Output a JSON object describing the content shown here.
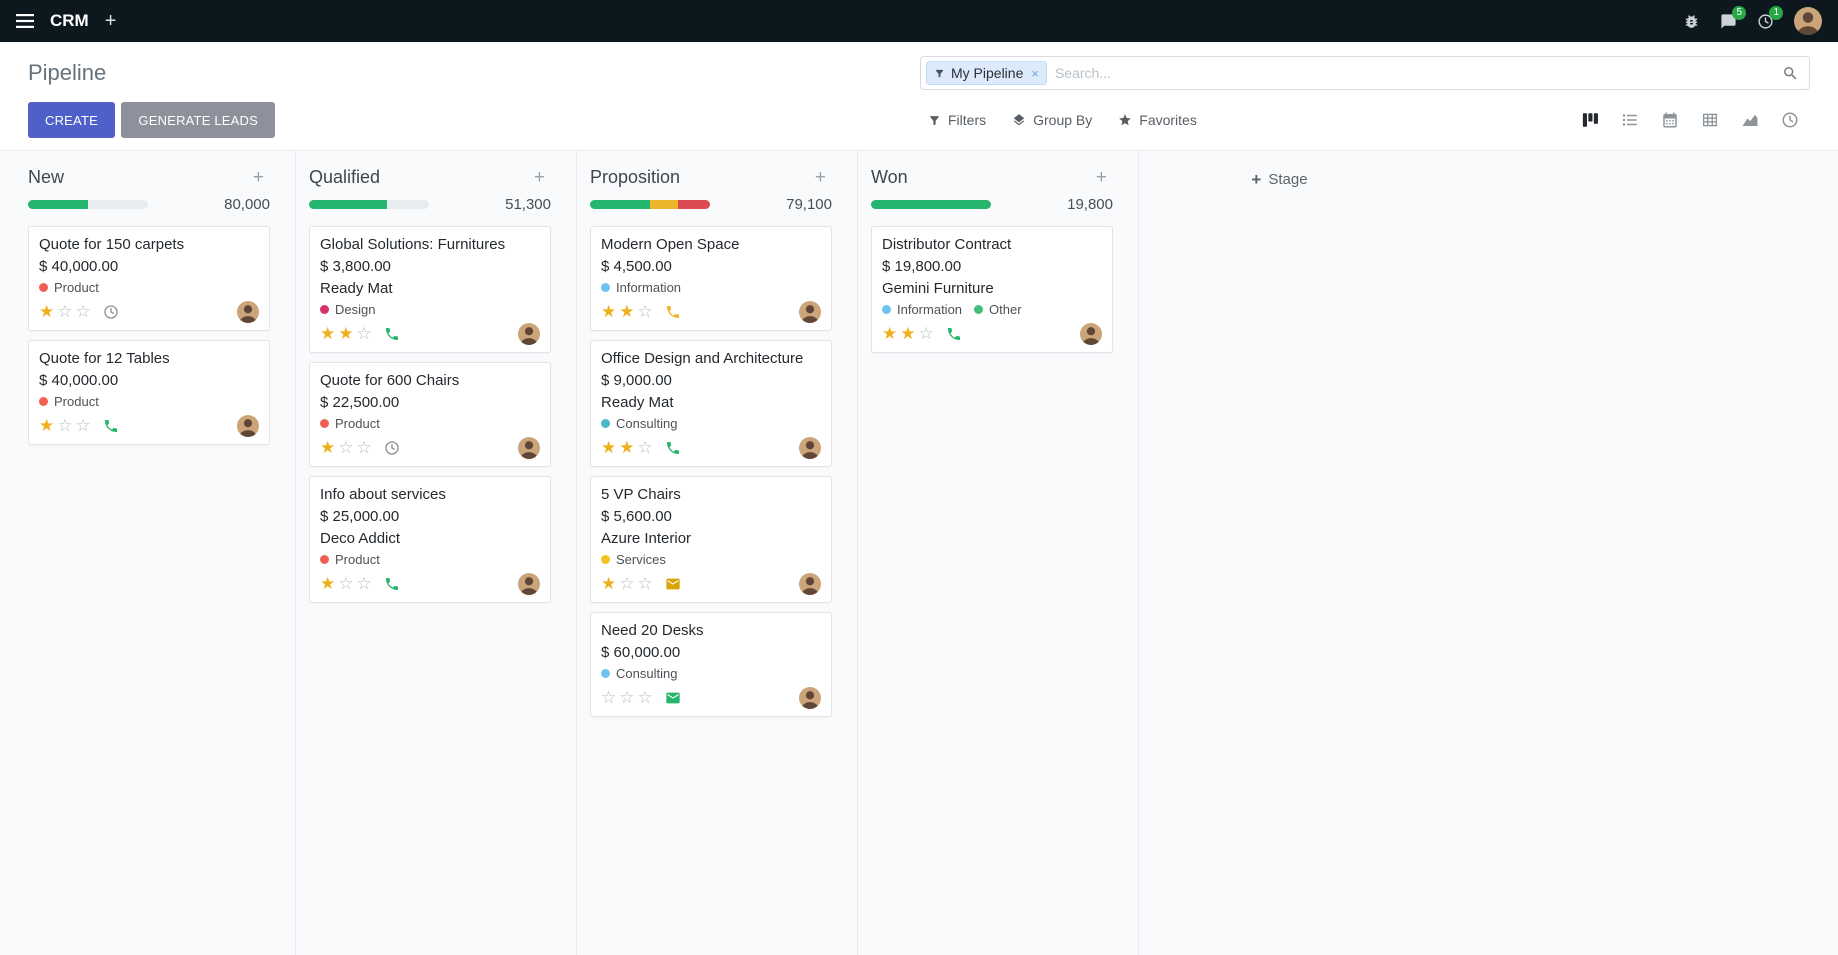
{
  "navbar": {
    "app_name": "CRM",
    "messages_badge": "5",
    "activities_badge": "1",
    "badge_color": "#28a745"
  },
  "control_panel": {
    "title": "Pipeline",
    "buttons": {
      "create": "CREATE",
      "generate_leads": "GENERATE LEADS"
    },
    "search": {
      "facet_label": "My Pipeline",
      "facet_remove": "×",
      "placeholder": "Search..."
    },
    "filter_bar": {
      "filters": "Filters",
      "group_by": "Group By",
      "favorites": "Favorites"
    },
    "view_switcher": {
      "views": [
        "kanban",
        "list",
        "calendar",
        "pivot",
        "graph",
        "activity"
      ],
      "active": "kanban"
    }
  },
  "board": {
    "add_stage_label": "Stage",
    "columns": [
      {
        "name": "New",
        "total": "80,000",
        "progress": [
          {
            "color": "#26b56e",
            "pct": 50
          }
        ],
        "cards": [
          {
            "title": "Quote for 150 carpets",
            "amount": "$ 40,000.00",
            "company": "",
            "tags": [
              {
                "label": "Product",
                "color": "#f06050"
              }
            ],
            "stars": 1,
            "activity": {
              "icon": "clock-icon",
              "color": "#8a9096"
            }
          },
          {
            "title": "Quote for 12 Tables",
            "amount": "$ 40,000.00",
            "company": "",
            "tags": [
              {
                "label": "Product",
                "color": "#f06050"
              }
            ],
            "stars": 1,
            "activity": {
              "icon": "phone-icon",
              "color": "#26b56e"
            }
          }
        ]
      },
      {
        "name": "Qualified",
        "total": "51,300",
        "progress": [
          {
            "color": "#26b56e",
            "pct": 65
          }
        ],
        "cards": [
          {
            "title": "Global Solutions: Furnitures",
            "amount": "$ 3,800.00",
            "company": "Ready Mat",
            "tags": [
              {
                "label": "Design",
                "color": "#d6336c"
              }
            ],
            "stars": 2,
            "activity": {
              "icon": "phone-icon",
              "color": "#26b56e"
            }
          },
          {
            "title": "Quote for 600 Chairs",
            "amount": "$ 22,500.00",
            "company": "",
            "tags": [
              {
                "label": "Product",
                "color": "#f06050"
              }
            ],
            "stars": 1,
            "activity": {
              "icon": "clock-icon",
              "color": "#8a9096"
            }
          },
          {
            "title": "Info about services",
            "amount": "$ 25,000.00",
            "company": "Deco Addict",
            "tags": [
              {
                "label": "Product",
                "color": "#f06050"
              }
            ],
            "stars": 1,
            "activity": {
              "icon": "phone-icon",
              "color": "#26b56e"
            }
          }
        ]
      },
      {
        "name": "Proposition",
        "total": "79,100",
        "progress": [
          {
            "color": "#26b56e",
            "pct": 50
          },
          {
            "color": "#edb52c",
            "pct": 23
          },
          {
            "color": "#dd4a51",
            "pct": 27
          }
        ],
        "cards": [
          {
            "title": "Modern Open Space",
            "amount": "$ 4,500.00",
            "company": "",
            "tags": [
              {
                "label": "Information",
                "color": "#6ec2ef"
              }
            ],
            "stars": 2,
            "activity": {
              "icon": "phone-icon",
              "color": "#edb52c"
            }
          },
          {
            "title": "Office Design and Architecture",
            "amount": "$ 9,000.00",
            "company": "Ready Mat",
            "tags": [
              {
                "label": "Consulting",
                "color": "#49b6c9"
              }
            ],
            "stars": 2,
            "activity": {
              "icon": "phone-icon",
              "color": "#26b56e"
            }
          },
          {
            "title": "5 VP Chairs",
            "amount": "$ 5,600.00",
            "company": "Azure Interior",
            "tags": [
              {
                "label": "Services",
                "color": "#f0c41c"
              }
            ],
            "stars": 1,
            "activity": {
              "icon": "mail-icon",
              "color": "#d9a404"
            }
          },
          {
            "title": "Need 20 Desks",
            "amount": "$ 60,000.00",
            "company": "",
            "tags": [
              {
                "label": "Consulting",
                "color": "#6ec2ef"
              }
            ],
            "stars": 0,
            "activity": {
              "icon": "mail-icon",
              "color": "#26b56e"
            }
          }
        ]
      },
      {
        "name": "Won",
        "total": "19,800",
        "progress": [
          {
            "color": "#26b56e",
            "pct": 100
          }
        ],
        "cards": [
          {
            "title": "Distributor Contract",
            "amount": "$ 19,800.00",
            "company": "Gemini Furniture",
            "tags": [
              {
                "label": "Information",
                "color": "#6ec2ef"
              },
              {
                "label": "Other",
                "color": "#3fbf76"
              }
            ],
            "stars": 2,
            "activity": {
              "icon": "phone-icon",
              "color": "#26b56e"
            }
          }
        ]
      }
    ]
  }
}
